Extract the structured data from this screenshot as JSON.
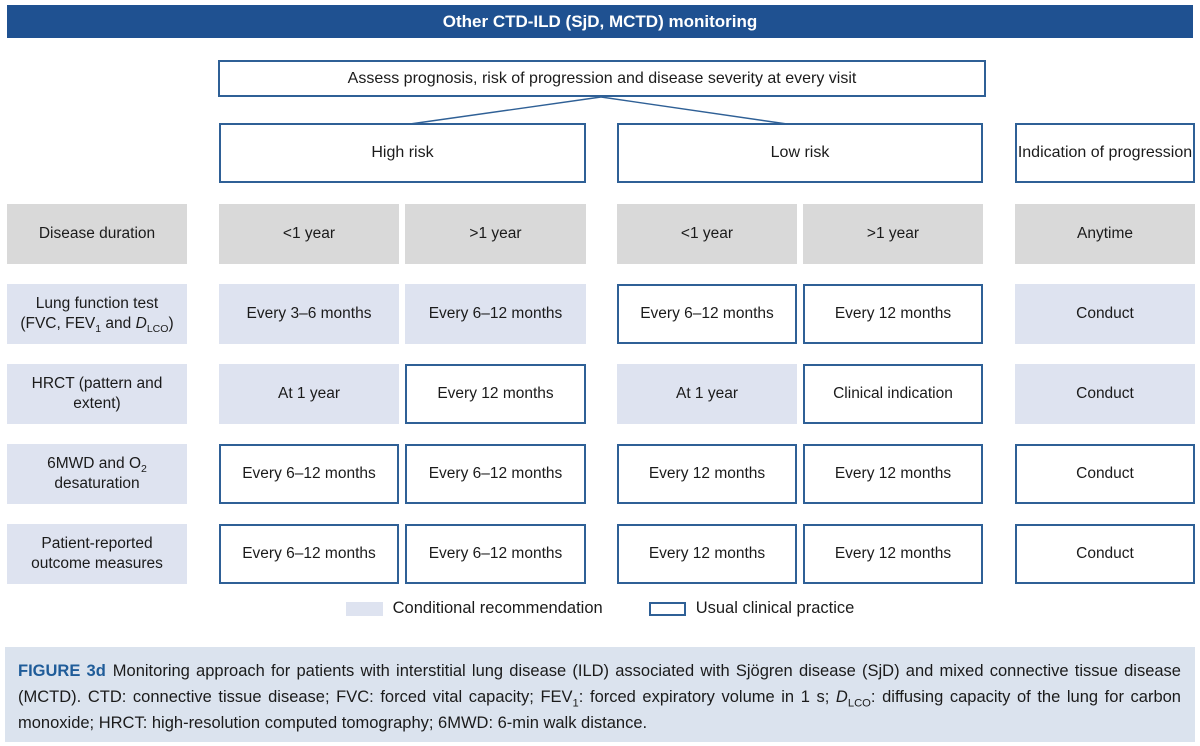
{
  "banner": {
    "title": "Other CTD-ILD (SjD, MCTD) monitoring"
  },
  "assess": {
    "text": "Assess prognosis, risk of progression and disease severity at every visit"
  },
  "headers": [
    {
      "label": "High risk"
    },
    {
      "label": "Low risk"
    },
    {
      "label": "Indication of progression"
    }
  ],
  "grid": {
    "rows": [
      {
        "label": {
          "segments": [
            {
              "t": "Disease duration"
            }
          ],
          "style": "gray"
        },
        "cells": [
          {
            "text": "<1 year",
            "style": "gray"
          },
          {
            "text": ">1 year",
            "style": "gray"
          },
          {
            "text": "<1 year",
            "style": "gray"
          },
          {
            "text": ">1 year",
            "style": "gray"
          },
          {
            "text": "Anytime",
            "style": "gray"
          }
        ]
      },
      {
        "label": {
          "segments": [
            {
              "t": "Lung function test"
            },
            {
              "br": true
            },
            {
              "t": "(FVC, FEV"
            },
            {
              "t": "1",
              "sub": true
            },
            {
              "t": " and "
            },
            {
              "t": "D",
              "i": true
            },
            {
              "t": "LCO",
              "sub": true
            },
            {
              "t": ")"
            }
          ],
          "style": "cond"
        },
        "cells": [
          {
            "text": "Every 3–6 months",
            "style": "cond"
          },
          {
            "text": "Every 6–12 months",
            "style": "cond"
          },
          {
            "text": "Every 6–12 months",
            "style": "usual"
          },
          {
            "text": "Every 12 months",
            "style": "usual"
          },
          {
            "text": "Conduct",
            "style": "cond"
          }
        ]
      },
      {
        "label": {
          "segments": [
            {
              "t": "HRCT (pattern and extent)"
            }
          ],
          "style": "cond"
        },
        "cells": [
          {
            "text": "At 1 year",
            "style": "cond"
          },
          {
            "text": "Every 12 months",
            "style": "usual"
          },
          {
            "text": "At 1 year",
            "style": "cond"
          },
          {
            "text": "Clinical indication",
            "style": "usual"
          },
          {
            "text": "Conduct",
            "style": "cond"
          }
        ]
      },
      {
        "label": {
          "segments": [
            {
              "t": "6MWD and O"
            },
            {
              "t": "2",
              "sub": true
            },
            {
              "br": true
            },
            {
              "t": "desaturation"
            }
          ],
          "style": "cond"
        },
        "cells": [
          {
            "text": "Every 6–12 months",
            "style": "usual"
          },
          {
            "text": "Every 6–12 months",
            "style": "usual"
          },
          {
            "text": "Every 12 months",
            "style": "usual"
          },
          {
            "text": "Every 12 months",
            "style": "usual"
          },
          {
            "text": "Conduct",
            "style": "usual"
          }
        ]
      },
      {
        "label": {
          "segments": [
            {
              "t": "Patient-reported outcome measures"
            }
          ],
          "style": "cond"
        },
        "cells": [
          {
            "text": "Every 6–12 months",
            "style": "usual"
          },
          {
            "text": "Every 6–12 months",
            "style": "usual"
          },
          {
            "text": "Every 12 months",
            "style": "usual"
          },
          {
            "text": "Every 12 months",
            "style": "usual"
          },
          {
            "text": "Conduct",
            "style": "usual"
          }
        ]
      }
    ]
  },
  "legend": {
    "items": [
      {
        "swatch": "cond",
        "label": "Conditional recommendation"
      },
      {
        "swatch": "usual",
        "label": "Usual clinical practice"
      }
    ]
  },
  "caption": {
    "figure_label": "FIGURE 3d",
    "segments": [
      {
        "t": "FIGURE 3d",
        "accent": true
      },
      {
        "t": "Monitoring approach for patients with interstitial lung disease (ILD) associated with Sjögren disease (SjD) and mixed connective tissue disease (MCTD). CTD: connective tissue disease; FVC: forced vital capacity; FEV"
      },
      {
        "t": "1",
        "sub": true
      },
      {
        "t": ": forced expiratory volume in 1 s; "
      },
      {
        "t": "D",
        "i": true
      },
      {
        "t": "LCO",
        "sub": true
      },
      {
        "t": ": diffusing capacity of the lung for carbon monoxide; HRCT: high-resolution computed tomography; 6MWD: 6-min walk distance."
      }
    ]
  },
  "colors": {
    "banner_bg": "#1F5191",
    "outline_blue": "#2F6096",
    "conditional_fill": "#DEE3F0",
    "duration_fill": "#D9D9D9",
    "caption_bg": "#DBE3EE",
    "figure_label_blue": "#1F5C99"
  }
}
